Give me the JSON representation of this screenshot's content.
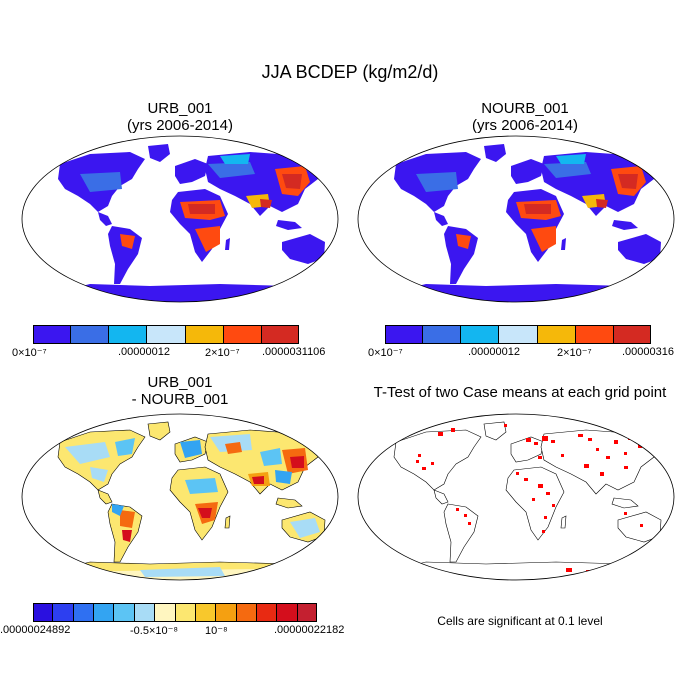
{
  "main_title": "JJA BCDEP (kg/m2/d)",
  "panels": {
    "urb": {
      "title1": "URB_001",
      "title2": "(yrs 2006-2014)"
    },
    "nourb": {
      "title1": "NOURB_001",
      "title2": "(yrs 2006-2014)"
    },
    "diff": {
      "title1": "URB_001",
      "title2": "- NOURB_001"
    },
    "ttest": {
      "title1": "T-Test of two Case means at each grid point",
      "note": "Cells are significant at 0.1 level"
    }
  },
  "colorbar_urb": {
    "colors": [
      "#3b16f0",
      "#3a6ee6",
      "#13b6f0",
      "#c8e6fa",
      "#f5b80a",
      "#ff4a10",
      "#d42a22"
    ],
    "labels": [
      "0×10⁻⁷",
      ".00000012",
      "2×10⁻⁷",
      ".0000031106"
    ]
  },
  "colorbar_nourb": {
    "colors": [
      "#3b16f0",
      "#3a6ee6",
      "#13b6f0",
      "#c8e6fa",
      "#f5b80a",
      "#ff4a10",
      "#d42a22"
    ],
    "labels": [
      "0×10⁻⁷",
      ".00000012",
      "2×10⁻⁷",
      ".00000316"
    ]
  },
  "colorbar_diff": {
    "colors": [
      "#2a10e0",
      "#2d3ff0",
      "#2f70f2",
      "#33a4f2",
      "#5cc4f4",
      "#a8dcf6",
      "#fff6c0",
      "#fce770",
      "#f8c82c",
      "#f5a011",
      "#f56a10",
      "#e82a12",
      "#d40e1c",
      "#c42030"
    ],
    "labels": [
      ".00000024892",
      "-0.5×10⁻⁸",
      "10⁻⁸",
      ".00000022182"
    ]
  },
  "colors": {
    "ocean": "#ffffff",
    "land_low": "#3b16f0",
    "sig_cell": "#ff0000"
  }
}
